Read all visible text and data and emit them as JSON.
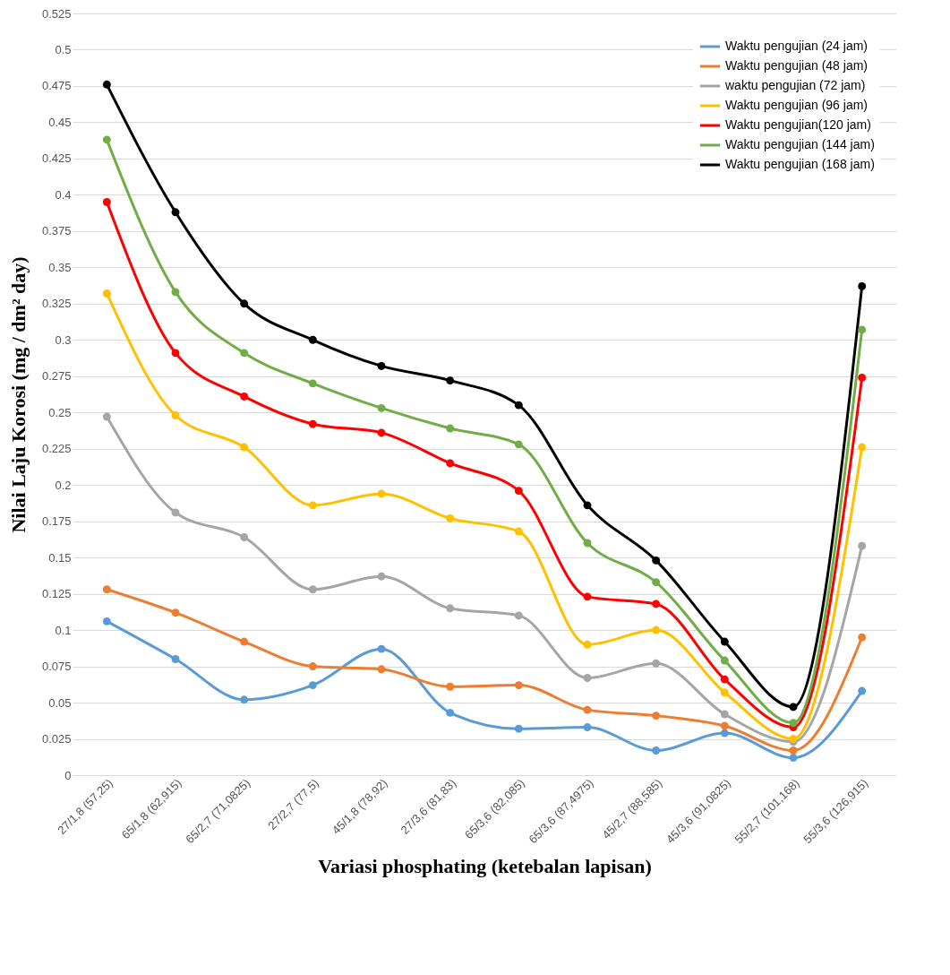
{
  "chart_data": {
    "type": "line",
    "xlabel": "Variasi phosphating (ketebalan lapisan)",
    "ylabel": "Nilai Laju Korosi (mg / dm² day)",
    "categories": [
      "27/1,8 (57,25)",
      "65/1,8 (62,915)",
      "65/2,7 (71,0825)",
      "27/2,7 (77,5)",
      "45/1,8 (78,92)",
      "27/3,6 (81,83)",
      "65/3,6 (82,085)",
      "65/3,6  (87,4975)",
      "45/2,7 (88,585)",
      "45/3,6 (91,0825)",
      "55/2,7 (101,168)",
      "55/3,6 (126,915)"
    ],
    "series": [
      {
        "name": "Waktu pengujian (24 jam)",
        "color": "#5b9bd5",
        "values": [
          0.106,
          0.08,
          0.052,
          0.062,
          0.087,
          0.043,
          0.032,
          0.033,
          0.017,
          0.029,
          0.012,
          0.058
        ]
      },
      {
        "name": "Waktu pengujian (48 jam)",
        "color": "#ed7d31",
        "values": [
          0.128,
          0.112,
          0.092,
          0.075,
          0.073,
          0.061,
          0.062,
          0.045,
          0.041,
          0.034,
          0.017,
          0.095
        ]
      },
      {
        "name": "waktu pengujian (72 jam)",
        "color": "#a5a5a5",
        "values": [
          0.247,
          0.181,
          0.164,
          0.128,
          0.137,
          0.115,
          0.11,
          0.067,
          0.077,
          0.042,
          0.023,
          0.158
        ]
      },
      {
        "name": "Waktu pengujian (96 jam)",
        "color": "#ffc000",
        "values": [
          0.332,
          0.248,
          0.226,
          0.186,
          0.194,
          0.177,
          0.168,
          0.09,
          0.1,
          0.057,
          0.025,
          0.226
        ]
      },
      {
        "name": "Waktu pengujian(120 jam)",
        "color": "#ff0000",
        "values": [
          0.395,
          0.291,
          0.261,
          0.242,
          0.236,
          0.215,
          0.196,
          0.123,
          0.118,
          0.066,
          0.033,
          0.274
        ]
      },
      {
        "name": "Waktu pengujian (144 jam)",
        "color": "#70ad47",
        "values": [
          0.438,
          0.333,
          0.291,
          0.27,
          0.253,
          0.239,
          0.228,
          0.16,
          0.133,
          0.079,
          0.036,
          0.307
        ]
      },
      {
        "name": "Waktu pengujian (168 jam)",
        "color": "#000000",
        "values": [
          0.476,
          0.388,
          0.325,
          0.3,
          0.282,
          0.272,
          0.255,
          0.186,
          0.148,
          0.092,
          0.047,
          0.337
        ]
      }
    ],
    "ylim": [
      0,
      0.525
    ],
    "yticks": [
      0,
      0.025,
      0.05,
      0.075,
      0.1,
      0.125,
      0.15,
      0.175,
      0.2,
      0.225,
      0.25,
      0.275,
      0.3,
      0.325,
      0.35,
      0.375,
      0.4,
      0.425,
      0.45,
      0.475,
      0.5,
      0.525
    ],
    "grid": "y",
    "legend": "top right",
    "marker": "circle",
    "line_style": "solid"
  }
}
